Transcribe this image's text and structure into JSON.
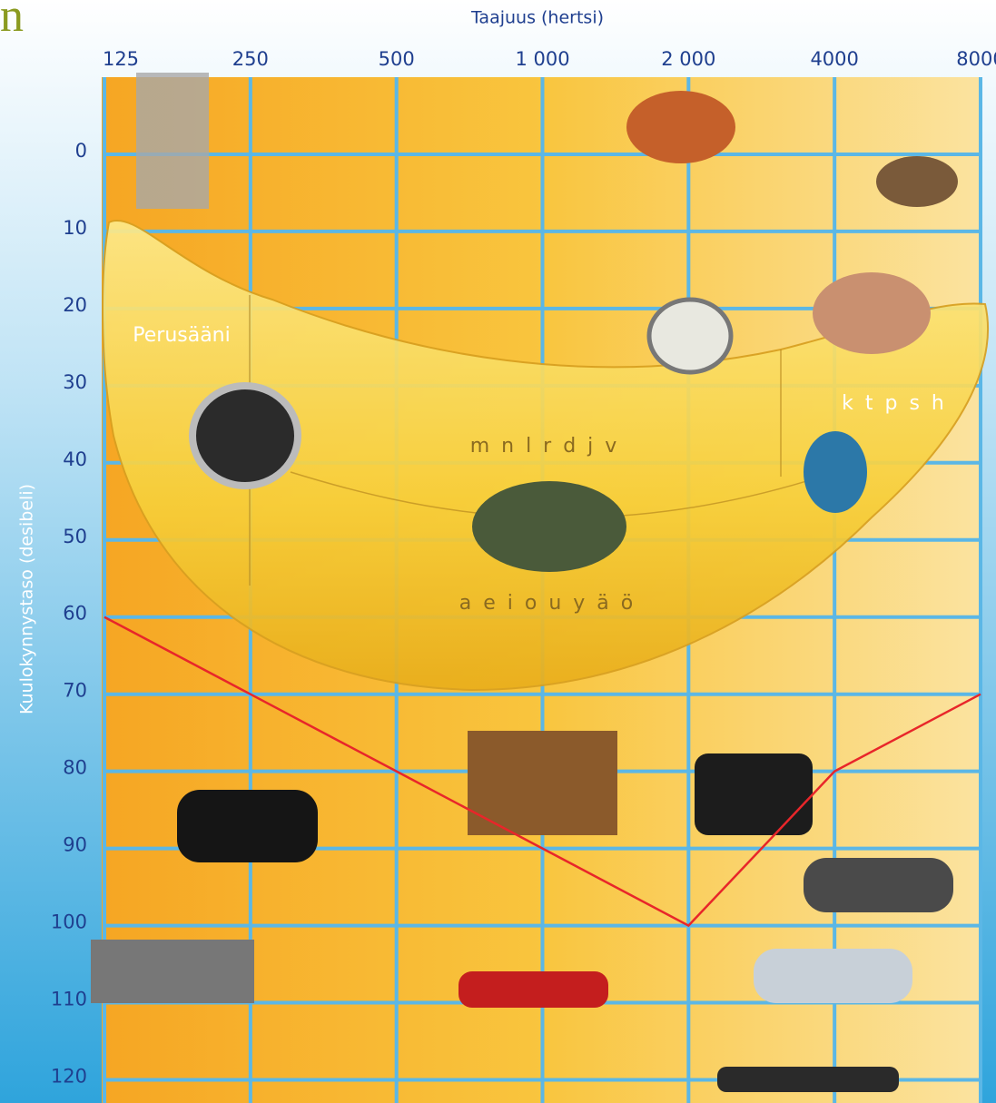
{
  "chart_data": {
    "type": "line",
    "title": "n",
    "x_label": "Taajuus (hertsi)",
    "y_label": "Kuulokynnystaso (desibeli)",
    "x": [
      125,
      250,
      500,
      1000,
      2000,
      4000,
      8000
    ],
    "values": [
      60,
      70,
      80,
      90,
      100,
      80,
      70
    ],
    "color": "#e8262a",
    "xscale": "log",
    "xlim": [
      125,
      8000
    ],
    "xticks": [
      125,
      250,
      500,
      {
        "value": 1000,
        "label": "1 000"
      },
      {
        "value": 2000,
        "label": "2 000"
      },
      4000,
      8000
    ],
    "ylim": [
      -10,
      123
    ],
    "yticks": [
      0,
      10,
      20,
      30,
      40,
      50,
      60,
      70,
      80,
      90,
      100,
      110,
      120
    ],
    "y_inverted": true,
    "grid": true,
    "annotations": [
      "Perusääni",
      "m n l r d j v",
      "a e i o u y ä ö",
      "k t p s h"
    ]
  }
}
